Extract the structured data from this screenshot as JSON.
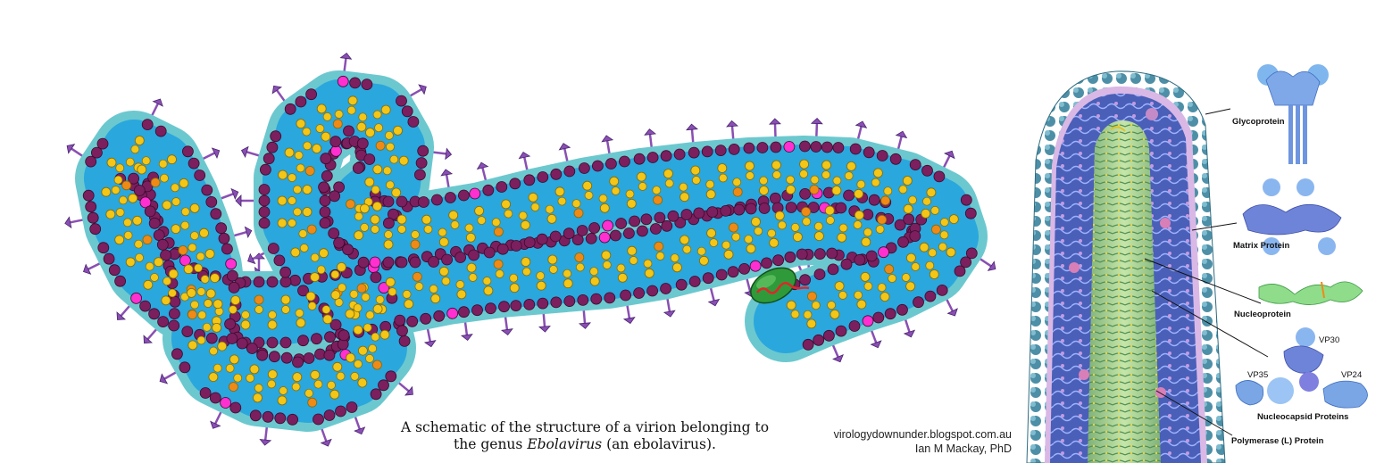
{
  "caption": {
    "line1": "A schematic of the structure of a virion belonging to",
    "line2_pre": "the genus ",
    "line2_genus": "Ebolavirus",
    "line2_post": " (an ebolavirus)."
  },
  "credit": {
    "url": "virologydownunder.blogspot.com.au",
    "author": "Ian M Mackay, PhD"
  },
  "labels": {
    "glycoprotein": "Glycoprotein",
    "matrix": "Matrix Protein",
    "nucleoprotein": "Nucleoprotein",
    "vp30": "VP30",
    "vp35": "VP35",
    "vp24": "VP24",
    "nucleocapsid": "Nucleocapsid Proteins",
    "polymerase": "Polymerase (L) Protein"
  },
  "colors": {
    "envelope_outer": "#6cc8cf",
    "envelope_inner": "#2aa7dd",
    "membrane_bead": "#7b1f5e",
    "membrane_bead_highlight": "#ff2fd0",
    "spike": "#8a4fb3",
    "nucleocapsid_coil": "#f3c617",
    "nucleocapsid_coil_accent": "#f08a16",
    "polymerase": "#2f9a3a",
    "rna": "#e0262a"
  }
}
